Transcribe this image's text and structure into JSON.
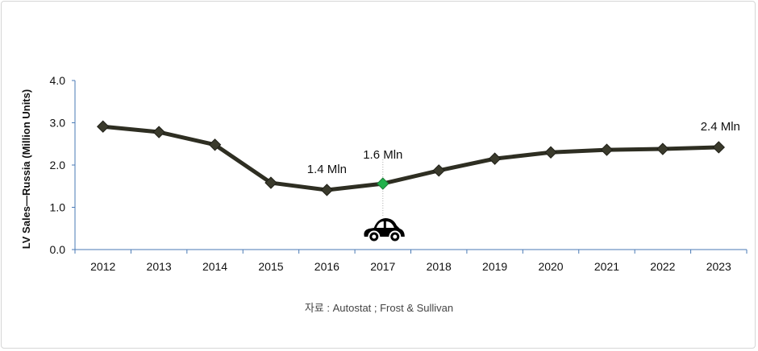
{
  "chart_data": {
    "type": "line",
    "categories": [
      "2012",
      "2013",
      "2014",
      "2015",
      "2016",
      "2017",
      "2018",
      "2019",
      "2020",
      "2021",
      "2022",
      "2023"
    ],
    "series": [
      {
        "values": [
          2.91,
          2.78,
          2.48,
          1.58,
          1.41,
          1.56,
          1.87,
          2.15,
          2.3,
          2.36,
          2.38,
          2.42
        ]
      }
    ],
    "ylabel": "LV Sales—Russia (Million Units)",
    "xlabel": "",
    "ylim": [
      0,
      4
    ],
    "yticks": [
      "0.0",
      "1.0",
      "2.0",
      "3.0",
      "4.0"
    ],
    "grid": false,
    "annotations": [
      {
        "category": "2016",
        "text": "1.4 Mln"
      },
      {
        "category": "2017",
        "text": "1.6 Mln"
      },
      {
        "category": "2023",
        "text": "2.4 Mln"
      }
    ],
    "highlight": {
      "category": "2017",
      "color": "#22b14c",
      "icon": "car-icon"
    },
    "line_color": "#2e2e22",
    "marker": "diamond"
  },
  "source": "자료 : Autostat ; Frost & Sullivan"
}
